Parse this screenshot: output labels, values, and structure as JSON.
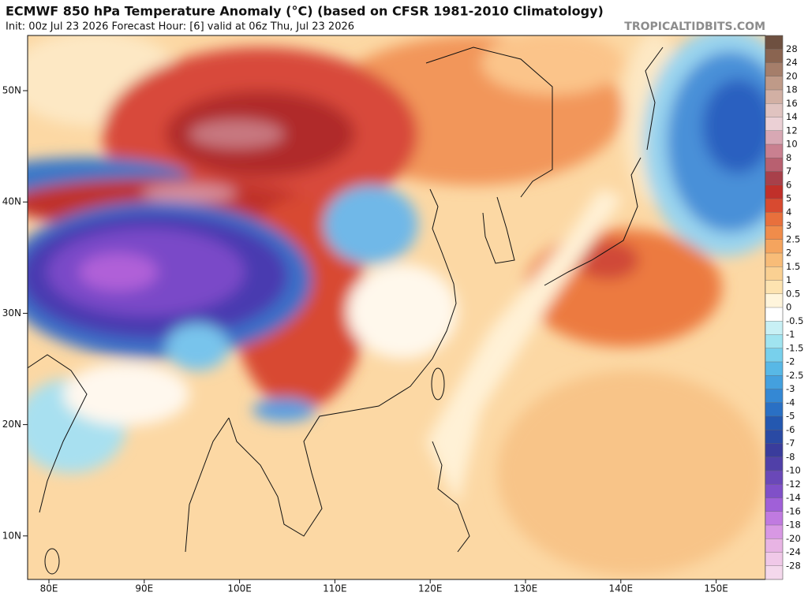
{
  "header": {
    "title": "ECMWF 850 hPa Temperature Anomaly (°C) (based on CFSR 1981-2010 Climatology)",
    "subtitle": "Init: 00z Jul 23 2026   Forecast Hour: [6]   valid at 06z Thu, Jul 23 2026",
    "watermark": "TROPICALTIDBITS.COM"
  },
  "map": {
    "lat_labels": [
      "50N",
      "40N",
      "30N",
      "20N",
      "10N"
    ],
    "lon_labels": [
      "80E",
      "90E",
      "100E",
      "110E",
      "120E",
      "130E",
      "140E",
      "150E"
    ]
  },
  "colorbar": {
    "ticks": [
      28,
      24,
      20,
      18,
      16,
      14,
      12,
      10,
      8,
      7,
      6,
      5,
      4,
      3,
      2.5,
      2,
      1.5,
      1,
      0.5,
      0,
      -0.5,
      -1,
      -1.5,
      -2,
      -2.5,
      -3,
      -4,
      -5,
      -6,
      -7,
      -8,
      -10,
      -12,
      -14,
      -16,
      -18,
      -20,
      -24,
      -28
    ],
    "colors": [
      "#6e5040",
      "#8a6450",
      "#a57e6a",
      "#bf9a88",
      "#d2b0a4",
      "#e0c3c0",
      "#ebd0d5",
      "#d8a8b4",
      "#c98090",
      "#b86070",
      "#a8404a",
      "#c0302a",
      "#d84a30",
      "#e8703c",
      "#f08c4a",
      "#f5a45e",
      "#f8bc78",
      "#fad092",
      "#fde3b0",
      "#fff5dc",
      "#ffffff",
      "#c8f0f5",
      "#a0e4f0",
      "#78d0ec",
      "#58b8e6",
      "#44a0de",
      "#3488d4",
      "#2a70c4",
      "#2458b0",
      "#2a4aa4",
      "#3a3c9c",
      "#5040a8",
      "#6a48b8",
      "#8050c8",
      "#a060d8",
      "#c07ae0",
      "#d898e4",
      "#e8b4e4",
      "#f0c8e8",
      "#f4d8ec"
    ]
  }
}
